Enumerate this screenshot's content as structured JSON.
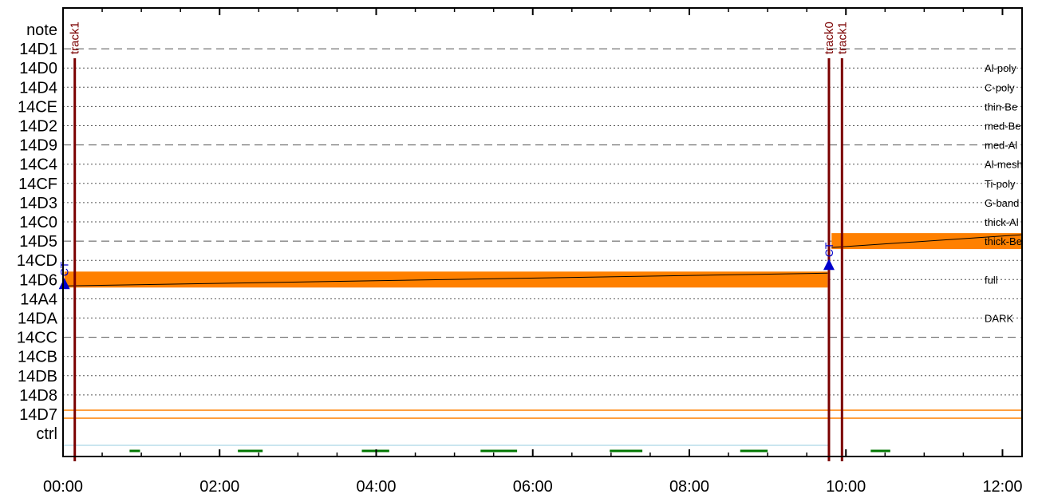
{
  "chart_data": {
    "type": "timeline",
    "x_ticks": [
      "00:00",
      "02:00",
      "04:00",
      "06:00",
      "08:00",
      "10:00",
      "12:00"
    ],
    "x_range_minutes": [
      0,
      735
    ],
    "rows": [
      {
        "id": "note",
        "style": "none",
        "right_label": ""
      },
      {
        "id": "14D1",
        "style": "dashed",
        "right_label": ""
      },
      {
        "id": "14D0",
        "style": "dotted",
        "right_label": "Al-poly"
      },
      {
        "id": "14D4",
        "style": "dotted",
        "right_label": "C-poly"
      },
      {
        "id": "14CE",
        "style": "dotted",
        "right_label": "thin-Be"
      },
      {
        "id": "14D2",
        "style": "dotted",
        "right_label": "med-Be"
      },
      {
        "id": "14D9",
        "style": "dashed",
        "right_label": "med-Al"
      },
      {
        "id": "14C4",
        "style": "dotted",
        "right_label": "Al-mesh"
      },
      {
        "id": "14CF",
        "style": "dotted",
        "right_label": "Ti-poly"
      },
      {
        "id": "14D3",
        "style": "dotted",
        "right_label": "G-band"
      },
      {
        "id": "14C0",
        "style": "dotted",
        "right_label": "thick-Al"
      },
      {
        "id": "14D5",
        "style": "dashed",
        "right_label": "thick-Be"
      },
      {
        "id": "14CD",
        "style": "dotted",
        "right_label": ""
      },
      {
        "id": "14D6",
        "style": "dotted",
        "right_label": "full"
      },
      {
        "id": "14A4",
        "style": "dotted",
        "right_label": ""
      },
      {
        "id": "14DA",
        "style": "dotted",
        "right_label": "DARK"
      },
      {
        "id": "14CC",
        "style": "dashed",
        "right_label": ""
      },
      {
        "id": "14CB",
        "style": "dotted",
        "right_label": ""
      },
      {
        "id": "14DB",
        "style": "dotted",
        "right_label": ""
      },
      {
        "id": "14D8",
        "style": "dotted",
        "right_label": ""
      },
      {
        "id": "14D7",
        "style": "none",
        "right_label": ""
      },
      {
        "id": "ctrl",
        "style": "none",
        "right_label": ""
      }
    ],
    "track_markers": [
      {
        "label": "track1",
        "time_min": 9
      },
      {
        "label": "track0",
        "time_min": 587
      },
      {
        "label": "track1",
        "time_min": 597
      }
    ],
    "ct_markers": [
      {
        "label": "CT",
        "time_min": 1,
        "row": "14D6"
      },
      {
        "label": "CT",
        "time_min": 587,
        "row": "14CD"
      }
    ],
    "bars": [
      {
        "row": "14D6",
        "start_min": 1,
        "end_min": 586,
        "color": "#ff8000"
      },
      {
        "row": "14D5",
        "start_min": 589,
        "end_min": 735,
        "color": "#ff8000"
      }
    ],
    "ctrl_segments": [
      {
        "start_min": 51,
        "end_min": 59
      },
      {
        "start_min": 134,
        "end_min": 153
      },
      {
        "start_min": 229,
        "end_min": 250
      },
      {
        "start_min": 320,
        "end_min": 348
      },
      {
        "start_min": 419,
        "end_min": 444
      },
      {
        "start_min": 519,
        "end_min": 540
      },
      {
        "start_min": 619,
        "end_min": 634
      }
    ],
    "bar_color": "#ff8000",
    "track_color": "#7a0000",
    "ct_color": "#0000cc",
    "ctrl_color": "#007700"
  }
}
